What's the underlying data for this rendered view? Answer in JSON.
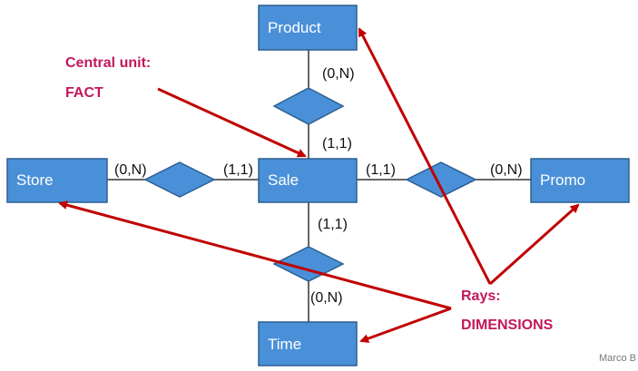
{
  "entities": {
    "product": "Product",
    "store": "Store",
    "sale": "Sale",
    "promo": "Promo",
    "time": "Time"
  },
  "cardinalities": {
    "product_rel": "(0,N)",
    "sale_product": "(1,1)",
    "store_rel": "(0,N)",
    "sale_store": "(1,1)",
    "sale_promo": "(1,1)",
    "promo_rel": "(0,N)",
    "sale_time": "(1,1)",
    "time_rel": "(0,N)"
  },
  "annotations": {
    "fact_line1": "Central unit:",
    "fact_line2": "FACT",
    "dim_line1": "Rays:",
    "dim_line2": "DIMENSIONS"
  },
  "credit": "Marco B",
  "colors": {
    "entity_fill": "#4a90d9",
    "arrow": "#c00000",
    "annotation_text": "#c2185b"
  }
}
